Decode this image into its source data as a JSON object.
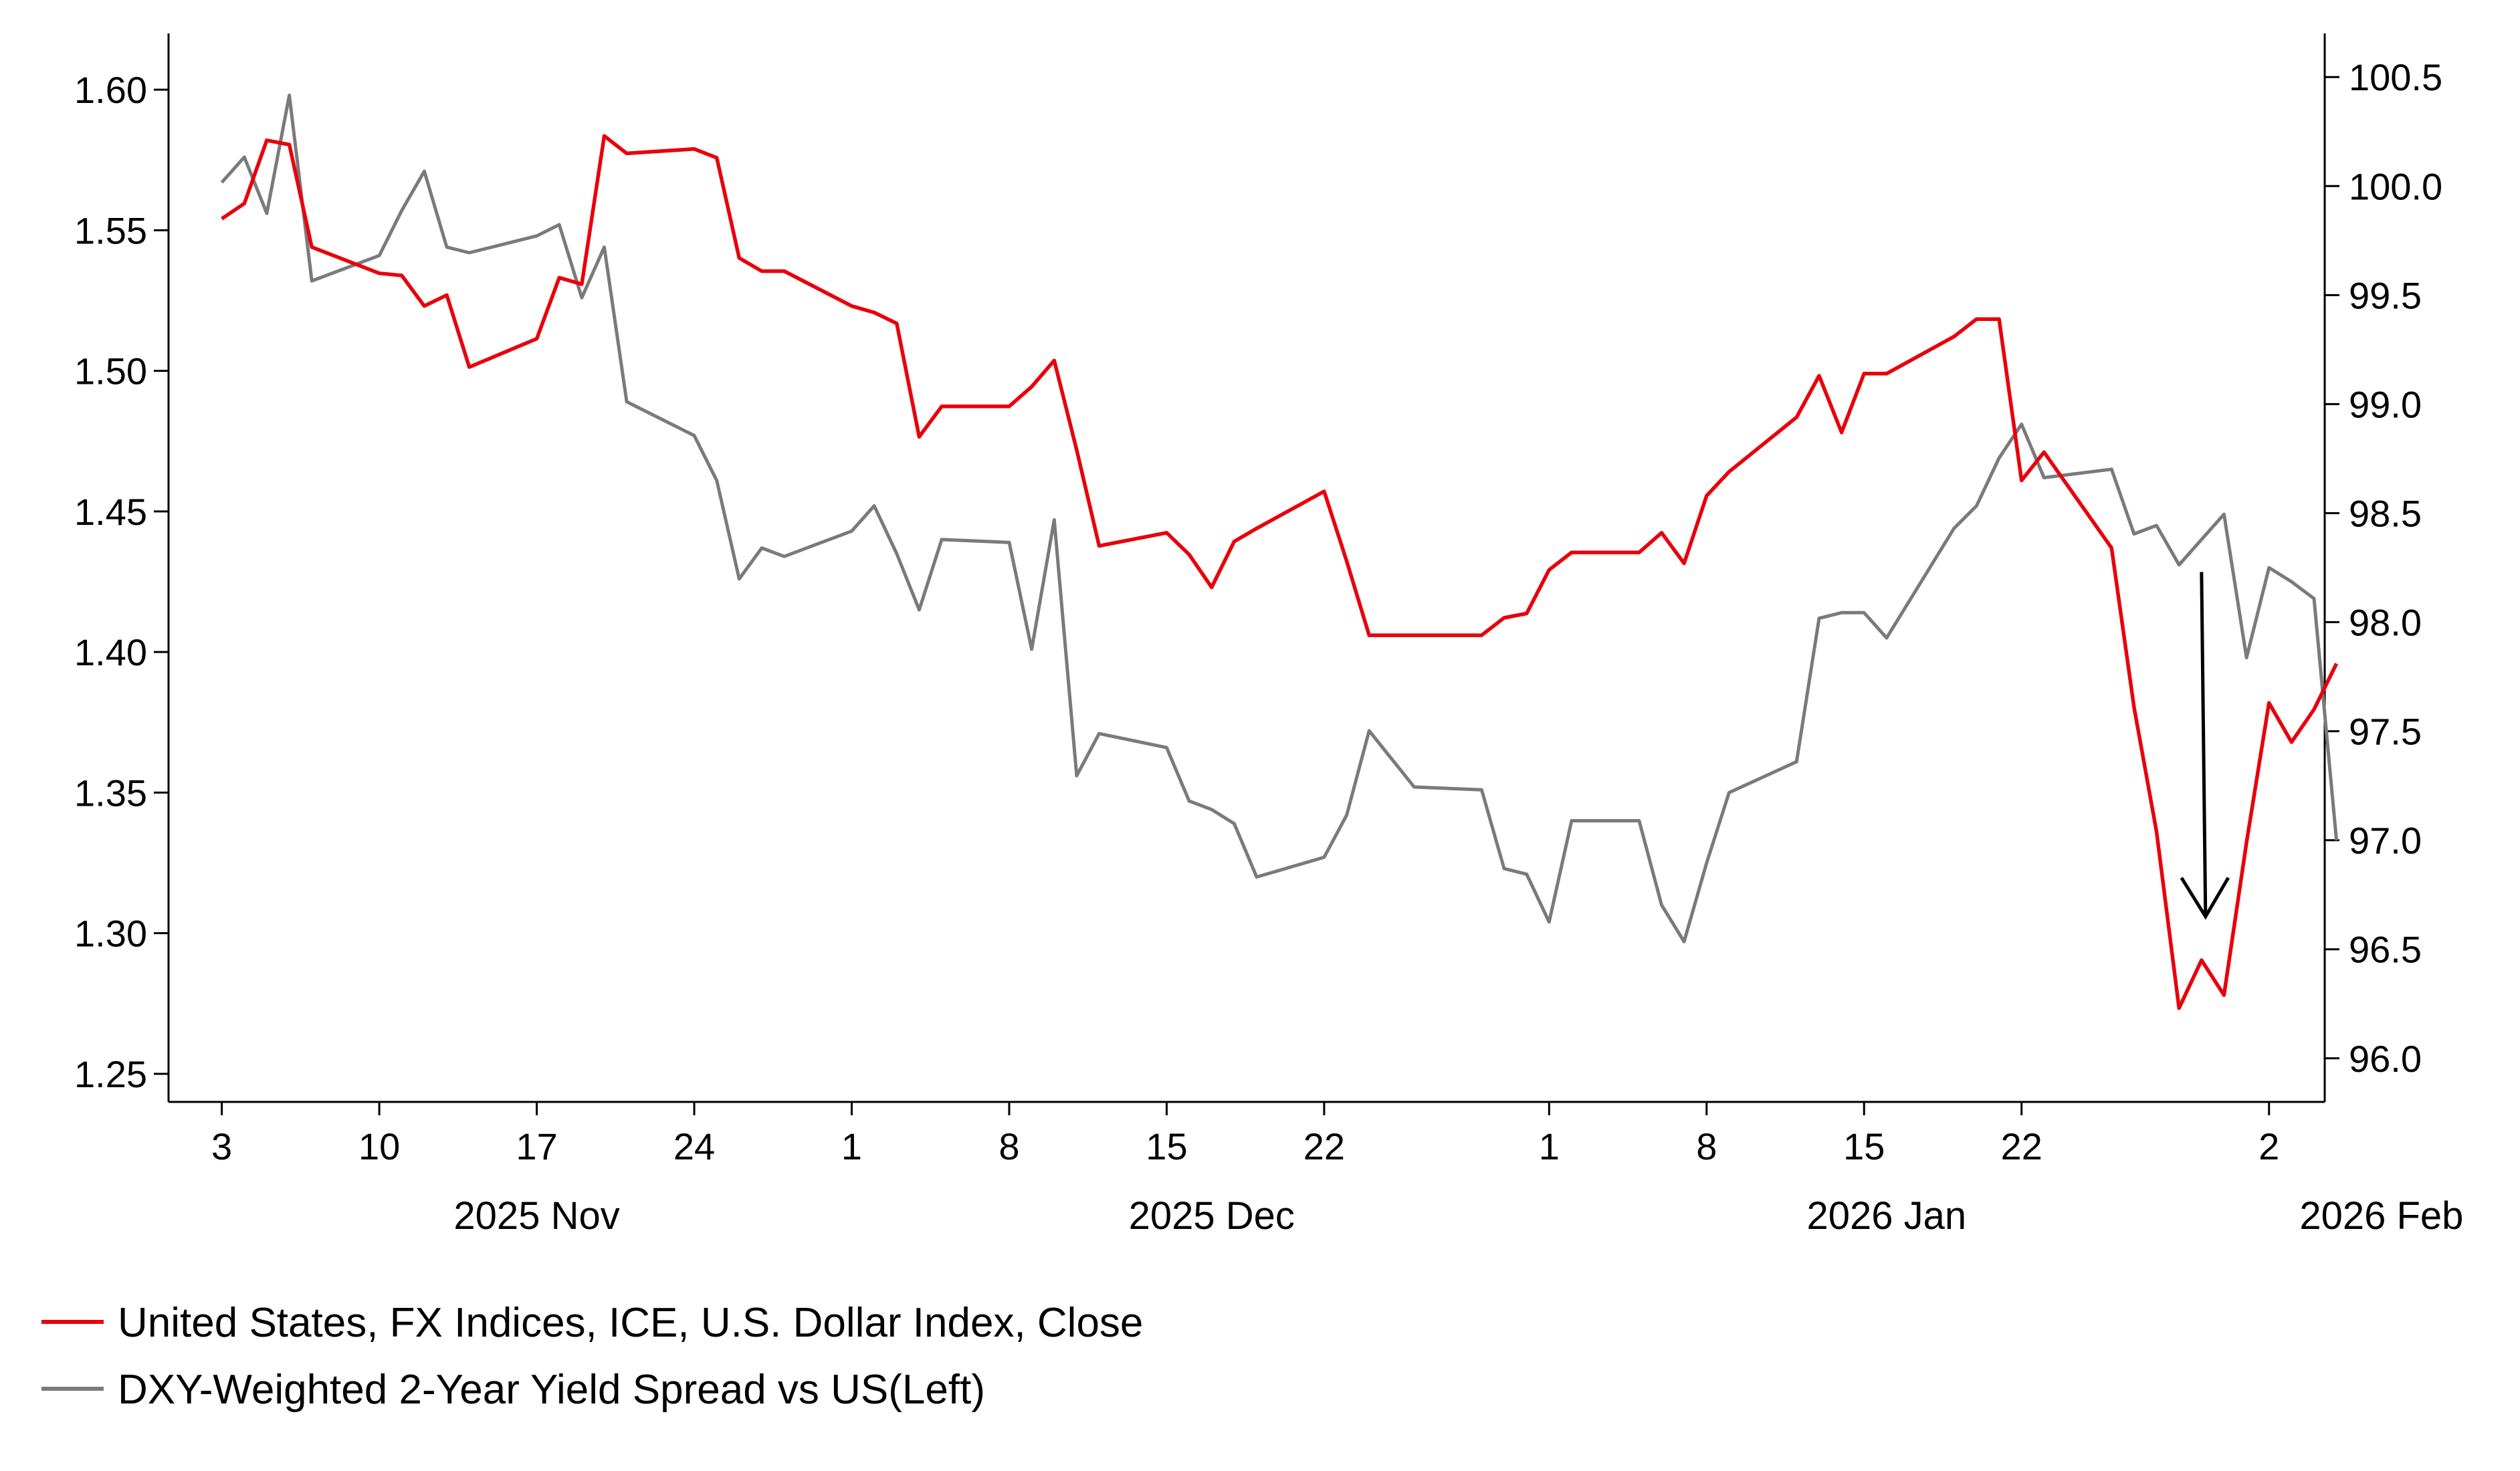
{
  "chart_data": {
    "type": "line",
    "title": "",
    "x_axis": {
      "type": "date",
      "range": [
        "2025-11-02",
        "2026-02-04"
      ],
      "ticks": [
        {
          "date": "2025-11-03",
          "label": "3"
        },
        {
          "date": "2025-11-10",
          "label": "10"
        },
        {
          "date": "2025-11-17",
          "label": "17"
        },
        {
          "date": "2025-11-24",
          "label": "24"
        },
        {
          "date": "2025-12-01",
          "label": "1"
        },
        {
          "date": "2025-12-08",
          "label": "8"
        },
        {
          "date": "2025-12-15",
          "label": "15"
        },
        {
          "date": "2025-12-22",
          "label": "22"
        },
        {
          "date": "2026-01-01",
          "label": "1"
        },
        {
          "date": "2026-01-08",
          "label": "8"
        },
        {
          "date": "2026-01-15",
          "label": "15"
        },
        {
          "date": "2026-01-22",
          "label": "22"
        },
        {
          "date": "2026-02-02",
          "label": "2"
        }
      ],
      "month_labels": [
        {
          "date": "2025-11-17",
          "label": "2025 Nov"
        },
        {
          "date": "2025-12-17",
          "label": "2025 Dec"
        },
        {
          "date": "2026-01-16",
          "label": "2026 Jan"
        },
        {
          "date": "2026-02-07",
          "label": "2026 Feb"
        }
      ]
    },
    "y_left": {
      "range": [
        1.24,
        1.62
      ],
      "ticks": [
        "1.25",
        "1.30",
        "1.35",
        "1.40",
        "1.45",
        "1.50",
        "1.55",
        "1.60"
      ]
    },
    "y_right": {
      "range": [
        95.8,
        100.7
      ],
      "ticks": [
        "96.0",
        "96.5",
        "97.0",
        "97.5",
        "98.0",
        "98.5",
        "99.0",
        "99.5",
        "100.0",
        "100.5"
      ]
    },
    "grid": false,
    "legend_position": "bottom-left",
    "series": [
      {
        "name": "United States, FX Indices, ICE, U.S. Dollar Index, Close",
        "axis": "right",
        "color": "#e8000b",
        "points": [
          [
            "2025-11-03",
            99.85
          ],
          [
            "2025-11-04",
            99.92
          ],
          [
            "2025-11-05",
            100.21
          ],
          [
            "2025-11-06",
            100.19
          ],
          [
            "2025-11-07",
            99.72
          ],
          [
            "2025-11-10",
            99.6
          ],
          [
            "2025-11-11",
            99.59
          ],
          [
            "2025-11-12",
            99.45
          ],
          [
            "2025-11-13",
            99.5
          ],
          [
            "2025-11-14",
            99.17
          ],
          [
            "2025-11-17",
            99.3
          ],
          [
            "2025-11-18",
            99.58
          ],
          [
            "2025-11-19",
            99.55
          ],
          [
            "2025-11-20",
            100.23
          ],
          [
            "2025-11-21",
            100.15
          ],
          [
            "2025-11-24",
            100.17
          ],
          [
            "2025-11-25",
            100.13
          ],
          [
            "2025-11-26",
            99.67
          ],
          [
            "2025-11-27",
            99.61
          ],
          [
            "2025-11-28",
            99.61
          ],
          [
            "2025-12-01",
            99.45
          ],
          [
            "2025-12-02",
            99.42
          ],
          [
            "2025-12-03",
            99.37
          ],
          [
            "2025-12-04",
            98.85
          ],
          [
            "2025-12-05",
            98.99
          ],
          [
            "2025-12-08",
            98.99
          ],
          [
            "2025-12-09",
            99.08
          ],
          [
            "2025-12-10",
            99.2
          ],
          [
            "2025-12-11",
            98.79
          ],
          [
            "2025-12-12",
            98.35
          ],
          [
            "2025-12-15",
            98.41
          ],
          [
            "2025-12-16",
            98.31
          ],
          [
            "2025-12-17",
            98.16
          ],
          [
            "2025-12-18",
            98.37
          ],
          [
            "2025-12-19",
            98.43
          ],
          [
            "2025-12-22",
            98.6
          ],
          [
            "2025-12-23",
            98.28
          ],
          [
            "2025-12-24",
            97.94
          ],
          [
            "2025-12-26",
            97.94
          ],
          [
            "2025-12-29",
            97.94
          ],
          [
            "2025-12-30",
            98.02
          ],
          [
            "2025-12-31",
            98.04
          ],
          [
            "2026-01-01",
            98.24
          ],
          [
            "2026-01-02",
            98.32
          ],
          [
            "2026-01-05",
            98.32
          ],
          [
            "2026-01-06",
            98.41
          ],
          [
            "2026-01-07",
            98.27
          ],
          [
            "2026-01-08",
            98.58
          ],
          [
            "2026-01-09",
            98.69
          ],
          [
            "2026-01-12",
            98.94
          ],
          [
            "2026-01-13",
            99.13
          ],
          [
            "2026-01-14",
            98.87
          ],
          [
            "2026-01-15",
            99.14
          ],
          [
            "2026-01-16",
            99.14
          ],
          [
            "2026-01-19",
            99.31
          ],
          [
            "2026-01-20",
            99.39
          ],
          [
            "2026-01-21",
            99.39
          ],
          [
            "2026-01-22",
            98.65
          ],
          [
            "2026-01-23",
            98.78
          ],
          [
            "2026-01-26",
            98.34
          ],
          [
            "2026-01-27",
            97.61
          ],
          [
            "2026-01-28",
            97.04
          ],
          [
            "2026-01-29",
            96.23
          ],
          [
            "2026-01-30",
            96.45
          ],
          [
            "2026-01-31",
            96.29
          ],
          [
            "2026-02-01",
            96.99
          ],
          [
            "2026-02-02",
            97.63
          ],
          [
            "2026-02-03",
            97.45
          ],
          [
            "2026-02-04",
            97.6
          ],
          [
            "2026-02-05",
            97.81
          ]
        ]
      },
      {
        "name": "DXY-Weighted 2-Year Yield Spread vs US(Left)",
        "axis": "left",
        "color": "#7a7a7a",
        "points": [
          [
            "2025-11-03",
            1.567
          ],
          [
            "2025-11-04",
            1.576
          ],
          [
            "2025-11-05",
            1.556
          ],
          [
            "2025-11-06",
            1.598
          ],
          [
            "2025-11-07",
            1.532
          ],
          [
            "2025-11-10",
            1.541
          ],
          [
            "2025-11-11",
            1.557
          ],
          [
            "2025-11-12",
            1.571
          ],
          [
            "2025-11-13",
            1.544
          ],
          [
            "2025-11-14",
            1.542
          ],
          [
            "2025-11-17",
            1.548
          ],
          [
            "2025-11-18",
            1.552
          ],
          [
            "2025-11-19",
            1.526
          ],
          [
            "2025-11-20",
            1.544
          ],
          [
            "2025-11-21",
            1.489
          ],
          [
            "2025-11-24",
            1.477
          ],
          [
            "2025-11-25",
            1.461
          ],
          [
            "2025-11-26",
            1.426
          ],
          [
            "2025-11-27",
            1.437
          ],
          [
            "2025-11-28",
            1.434
          ],
          [
            "2025-12-01",
            1.443
          ],
          [
            "2025-12-02",
            1.452
          ],
          [
            "2025-12-03",
            1.435
          ],
          [
            "2025-12-04",
            1.415
          ],
          [
            "2025-12-05",
            1.44
          ],
          [
            "2025-12-08",
            1.439
          ],
          [
            "2025-12-09",
            1.401
          ],
          [
            "2025-12-10",
            1.447
          ],
          [
            "2025-12-11",
            1.356
          ],
          [
            "2025-12-12",
            1.371
          ],
          [
            "2025-12-15",
            1.366
          ],
          [
            "2025-12-16",
            1.347
          ],
          [
            "2025-12-17",
            1.344
          ],
          [
            "2025-12-18",
            1.339
          ],
          [
            "2025-12-19",
            1.32
          ],
          [
            "2025-12-22",
            1.327
          ],
          [
            "2025-12-23",
            1.342
          ],
          [
            "2025-12-24",
            1.372
          ],
          [
            "2025-12-26",
            1.352
          ],
          [
            "2025-12-29",
            1.351
          ],
          [
            "2025-12-30",
            1.323
          ],
          [
            "2025-12-31",
            1.321
          ],
          [
            "2026-01-01",
            1.304
          ],
          [
            "2026-01-02",
            1.34
          ],
          [
            "2026-01-05",
            1.34
          ],
          [
            "2026-01-06",
            1.31
          ],
          [
            "2026-01-07",
            1.297
          ],
          [
            "2026-01-08",
            1.325
          ],
          [
            "2026-01-09",
            1.35
          ],
          [
            "2026-01-12",
            1.361
          ],
          [
            "2026-01-13",
            1.412
          ],
          [
            "2026-01-14",
            1.414
          ],
          [
            "2026-01-15",
            1.414
          ],
          [
            "2026-01-16",
            1.405
          ],
          [
            "2026-01-19",
            1.444
          ],
          [
            "2026-01-20",
            1.452
          ],
          [
            "2026-01-21",
            1.469
          ],
          [
            "2026-01-22",
            1.481
          ],
          [
            "2026-01-23",
            1.462
          ],
          [
            "2026-01-26",
            1.465
          ],
          [
            "2026-01-27",
            1.442
          ],
          [
            "2026-01-28",
            1.445
          ],
          [
            "2026-01-29",
            1.431
          ],
          [
            "2026-01-30",
            1.44
          ],
          [
            "2026-01-31",
            1.449
          ],
          [
            "2026-02-01",
            1.398
          ],
          [
            "2026-02-02",
            1.43
          ],
          [
            "2026-02-03",
            1.425
          ],
          [
            "2026-02-04",
            1.419
          ],
          [
            "2026-02-05",
            1.333
          ]
        ]
      }
    ],
    "annotations": [
      {
        "type": "arrow",
        "direction": "down",
        "from": [
          "2026-01-30",
          98.23
        ],
        "to": [
          "2026-01-30",
          96.65
        ],
        "axis": "right",
        "color": "#000000"
      }
    ]
  }
}
